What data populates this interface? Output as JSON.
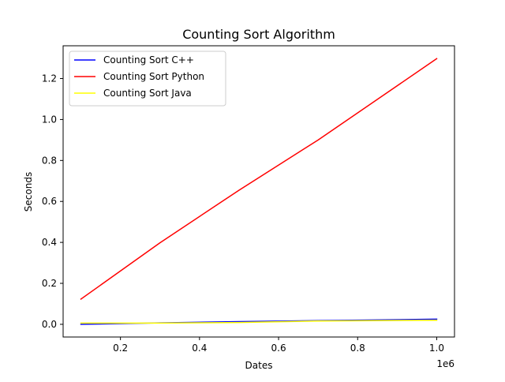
{
  "chart_data": {
    "type": "line",
    "title": "Counting Sort Algorithm",
    "xlabel": "Dates",
    "ylabel": "Seconds",
    "x_offset_label": "1e6",
    "xlim": [
      55000,
      1045000
    ],
    "ylim": [
      -0.062,
      1.36
    ],
    "xticks": [
      200000,
      400000,
      600000,
      800000,
      1000000
    ],
    "xtick_labels": [
      "0.2",
      "0.4",
      "0.6",
      "0.8",
      "1.0"
    ],
    "yticks": [
      0.0,
      0.2,
      0.4,
      0.6,
      0.8,
      1.0,
      1.2
    ],
    "ytick_labels": [
      "0.0",
      "0.2",
      "0.4",
      "0.6",
      "0.8",
      "1.0",
      "1.2"
    ],
    "grid": false,
    "legend_position": "upper-left",
    "x": [
      100000,
      300000,
      500000,
      700000,
      1000000
    ],
    "series": [
      {
        "name": "Counting Sort C++",
        "color": "#0000ff",
        "values": [
          0.0,
          0.007,
          0.013,
          0.018,
          0.025
        ]
      },
      {
        "name": "Counting Sort Python",
        "color": "#ff0000",
        "values": [
          0.123,
          0.398,
          0.655,
          0.9,
          1.297
        ]
      },
      {
        "name": "Counting Sort Java",
        "color": "#ffff00",
        "values": [
          0.006,
          0.006,
          0.009,
          0.016,
          0.02
        ]
      }
    ]
  }
}
